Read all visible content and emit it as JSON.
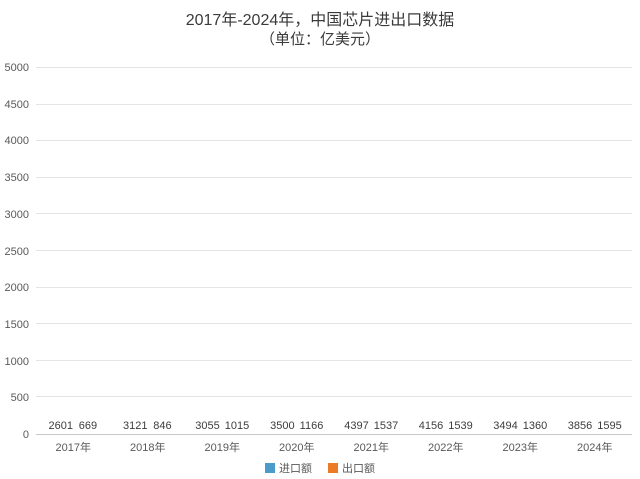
{
  "chart_data": {
    "type": "bar",
    "title": "2017年-2024年，中国芯片进出口数据",
    "subtitle": "（单位：亿美元）",
    "categories": [
      "2017年",
      "2018年",
      "2019年",
      "2020年",
      "2021年",
      "2022年",
      "2023年",
      "2024年"
    ],
    "series": [
      {
        "name": "进口额",
        "color": "#4A9BC9",
        "values": [
          2601,
          3121,
          3055,
          3500,
          4397,
          4156,
          3494,
          3856
        ]
      },
      {
        "name": "出口额",
        "color": "#EC7B28",
        "values": [
          669,
          846,
          1015,
          1166,
          1537,
          1539,
          1360,
          1595
        ]
      }
    ],
    "ylim": [
      0,
      5000
    ],
    "ytick_step": 500,
    "grid": true,
    "legend_position": "bottom",
    "xlabel": "",
    "ylabel": ""
  }
}
